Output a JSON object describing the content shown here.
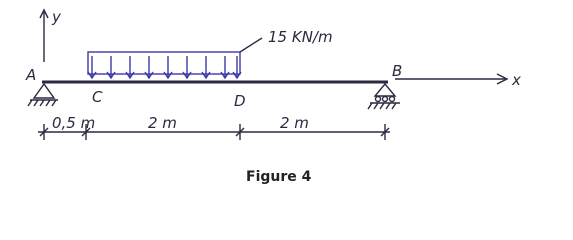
{
  "axes": {
    "y": "y",
    "x": "x"
  },
  "points": {
    "a": "A",
    "b": "B",
    "c": "C",
    "d": "D"
  },
  "load": "15 KN/m",
  "dimensions": [
    "0,5 m",
    "2 m",
    "2 m"
  ],
  "caption": "Figure 4"
}
